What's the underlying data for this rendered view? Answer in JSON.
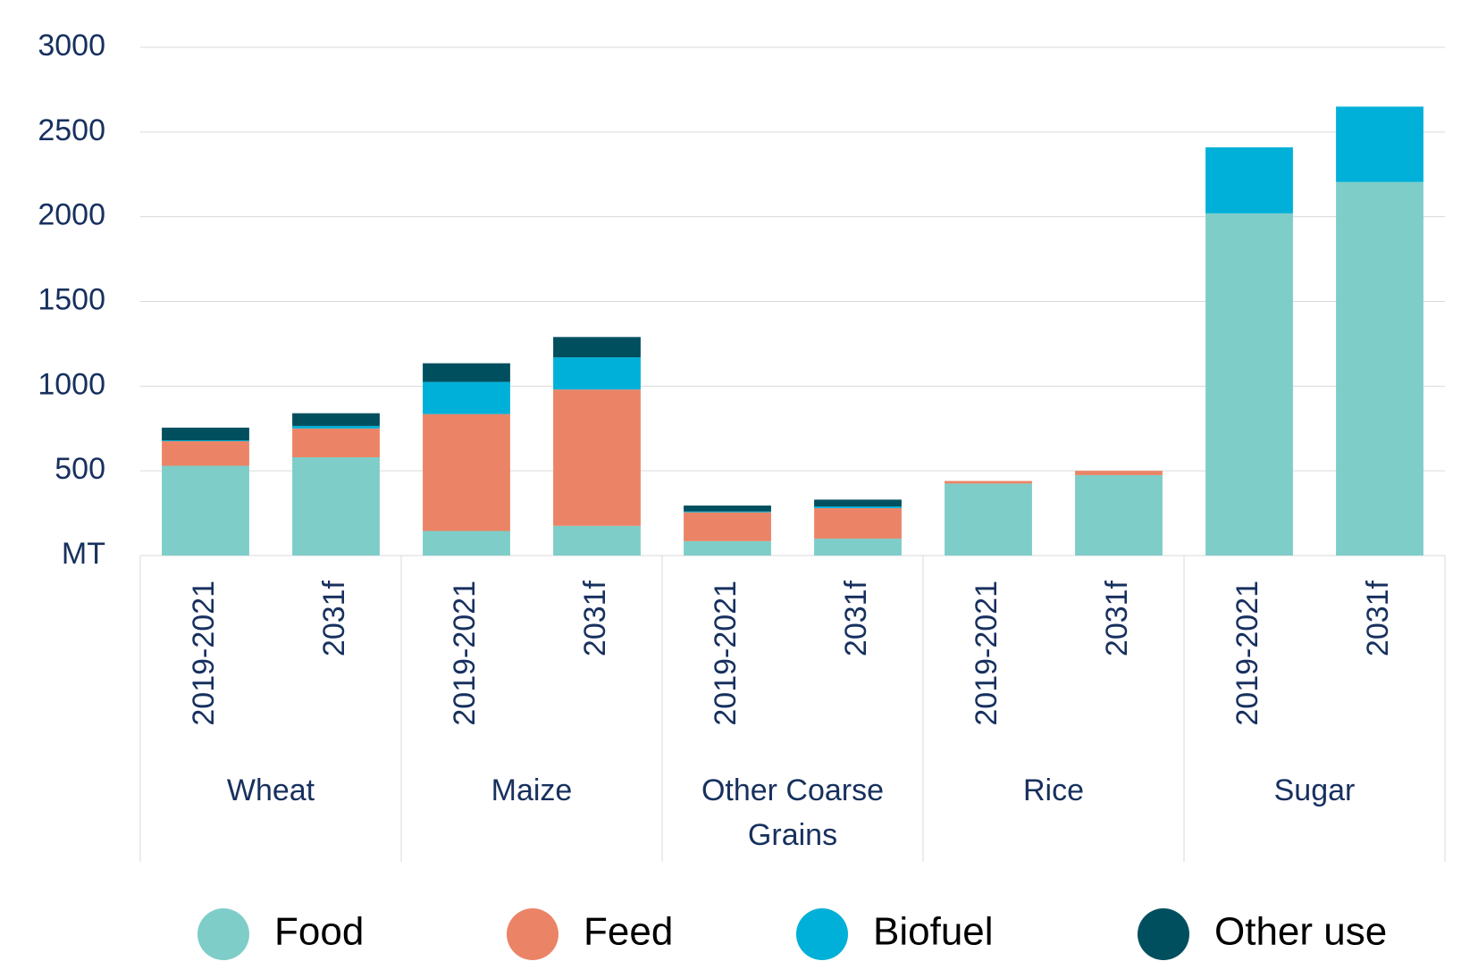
{
  "chart_data": {
    "type": "stacked_bar",
    "categories": [
      "2019-2021",
      "2031f",
      "2019-2021",
      "2031f",
      "2019-2021",
      "2031f",
      "2019-2021",
      "2031f",
      "2019-2021",
      "2031f"
    ],
    "groups": [
      "Wheat",
      "Maize",
      "Other Coarse Grains",
      "Rice",
      "Sugar"
    ],
    "series": [
      {
        "name": "Food",
        "color": "#7ecdc8",
        "values": [
          530,
          580,
          145,
          175,
          85,
          100,
          425,
          475,
          2020,
          2205
        ]
      },
      {
        "name": "Feed",
        "color": "#eb8466",
        "values": [
          145,
          170,
          690,
          805,
          170,
          180,
          15,
          25,
          0,
          0
        ]
      },
      {
        "name": "Biofuel",
        "color": "#00b0d8",
        "values": [
          5,
          15,
          190,
          190,
          5,
          10,
          0,
          0,
          390,
          445
        ]
      },
      {
        "name": "Other use",
        "color": "#004f5f",
        "values": [
          75,
          75,
          110,
          120,
          35,
          40,
          0,
          0,
          0,
          0
        ]
      }
    ],
    "ylim": [
      0,
      3000
    ],
    "yticks": [
      {
        "value": 0,
        "label": "MT"
      },
      500,
      1000,
      1500,
      2000,
      2500,
      3000
    ],
    "grid": true,
    "legend": "bottom"
  }
}
